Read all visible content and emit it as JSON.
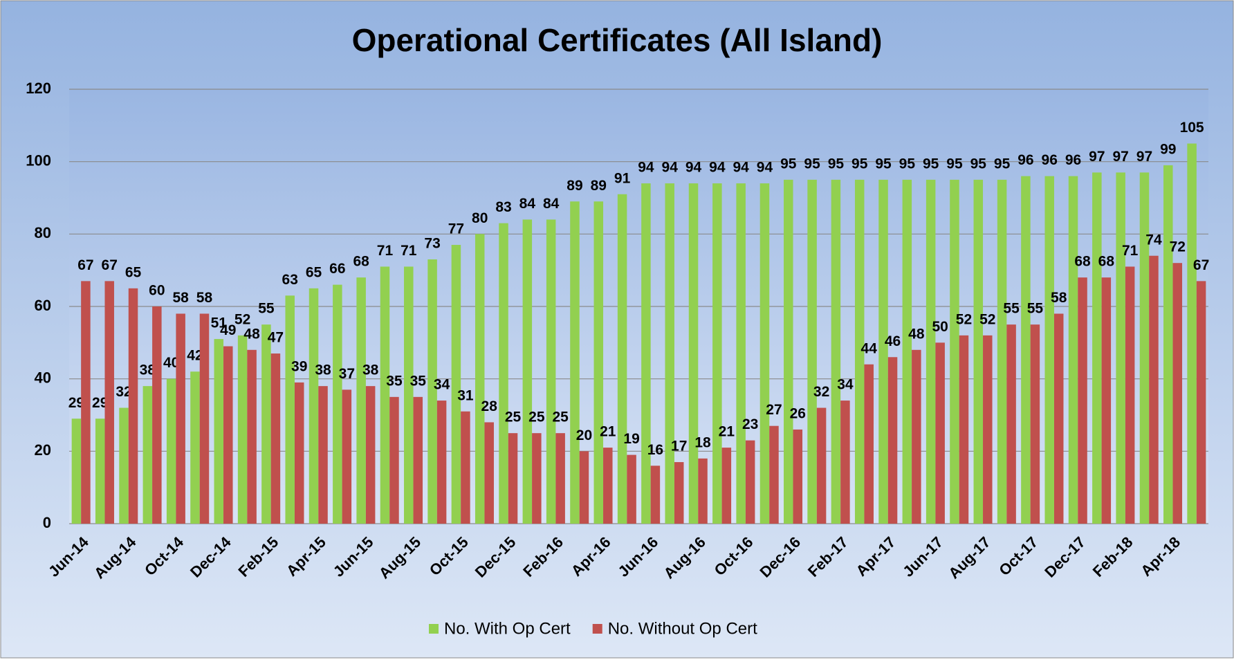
{
  "chart_data": {
    "type": "bar",
    "title": "Operational Certificates (All Island)",
    "categories": [
      "Jun-14",
      null,
      "Aug-14",
      null,
      "Oct-14",
      null,
      "Dec-14",
      null,
      "Feb-15",
      null,
      "Apr-15",
      null,
      "Jun-15",
      null,
      "Aug-15",
      null,
      "Oct-15",
      null,
      "Dec-15",
      null,
      "Feb-16",
      null,
      "Apr-16",
      null,
      "Jun-16",
      null,
      "Aug-16",
      null,
      "Oct-16",
      null,
      "Dec-16",
      null,
      "Feb-17",
      null,
      "Apr-17",
      null,
      "Jun-17",
      null,
      "Aug-17",
      null,
      "Oct-17",
      null,
      "Dec-17",
      null,
      "Feb-18",
      null,
      "Apr-18",
      null
    ],
    "series": [
      {
        "name": "No. With Op Cert",
        "color": "#92d050",
        "values": [
          29,
          29,
          32,
          38,
          40,
          42,
          51,
          52,
          55,
          63,
          65,
          66,
          68,
          71,
          71,
          73,
          77,
          80,
          83,
          84,
          84,
          89,
          89,
          91,
          94,
          94,
          94,
          94,
          94,
          94,
          95,
          95,
          95,
          95,
          95,
          95,
          95,
          95,
          95,
          95,
          96,
          96,
          96,
          97,
          97,
          97,
          99,
          105
        ]
      },
      {
        "name": "No. Without Op Cert",
        "color": "#c0504d",
        "values": [
          67,
          67,
          65,
          60,
          58,
          58,
          49,
          48,
          47,
          39,
          38,
          37,
          38,
          35,
          35,
          34,
          31,
          28,
          25,
          25,
          25,
          20,
          21,
          19,
          16,
          17,
          18,
          21,
          23,
          27,
          26,
          32,
          34,
          44,
          46,
          48,
          50,
          52,
          52,
          55,
          55,
          58,
          68,
          68,
          71,
          74,
          72,
          67
        ]
      }
    ],
    "ylim": [
      0,
      120
    ],
    "yticks": [
      0,
      20,
      40,
      60,
      80,
      100,
      120
    ],
    "grid": true,
    "legend": "bottom"
  }
}
